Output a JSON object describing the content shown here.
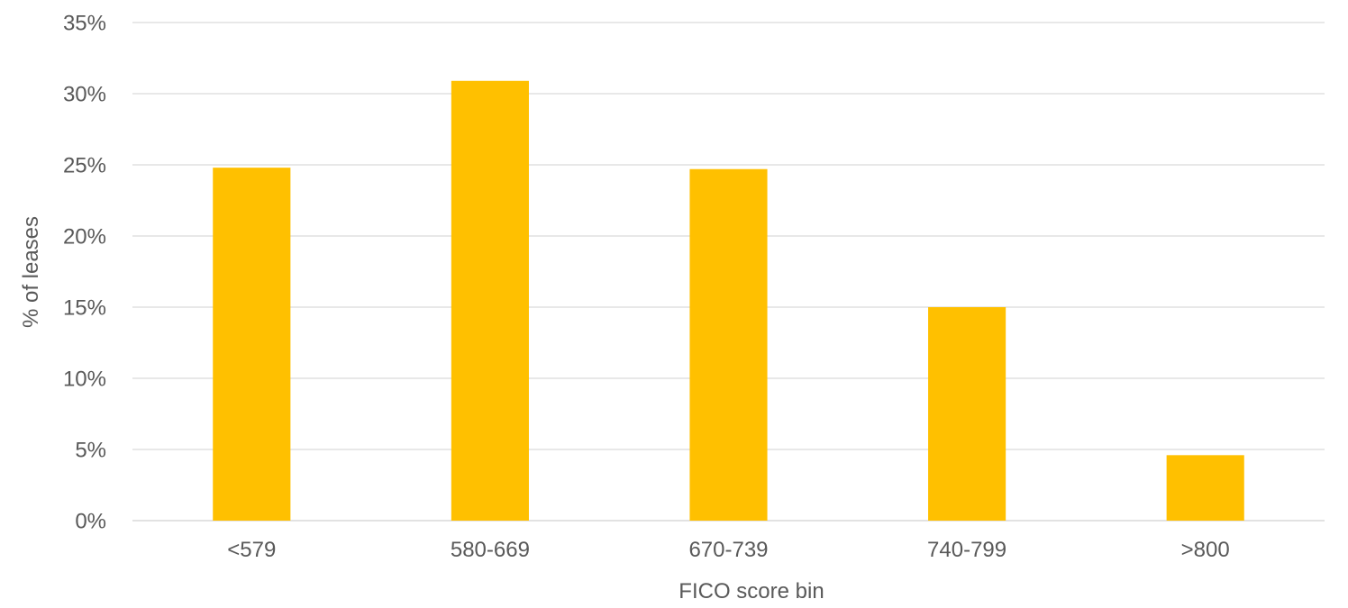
{
  "chart_data": {
    "type": "bar",
    "title": "",
    "xlabel": "FICO score bin",
    "ylabel": "% of leases",
    "categories": [
      "<579",
      "580-669",
      "670-739",
      "740-799",
      ">800"
    ],
    "values": [
      24.8,
      30.9,
      24.7,
      15.0,
      4.6
    ],
    "ylim": [
      0,
      35
    ],
    "ytick_step": 5,
    "ytick_labels": [
      "0%",
      "5%",
      "10%",
      "15%",
      "20%",
      "25%",
      "30%",
      "35%"
    ],
    "grid": true,
    "legend": "none",
    "colors": {
      "bar": "#FFC000",
      "gridline": "#D9D9D9",
      "text": "#595959"
    }
  }
}
